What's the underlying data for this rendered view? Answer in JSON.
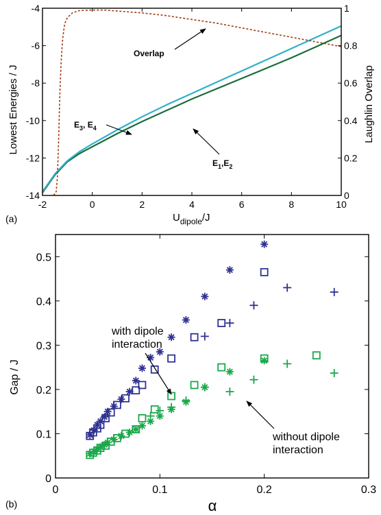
{
  "chart_data": [
    {
      "panel_label": "(a)",
      "type": "line",
      "xlabel": "U_dipole/J",
      "xlabel_main": "U",
      "xlabel_sub": "dipole",
      "xlabel_tail": "/J",
      "ylabel": "Lowest Energies / J",
      "y2label": "Laughlin Overlap",
      "xlim": [
        -2,
        10
      ],
      "ylim": [
        -14,
        -4
      ],
      "y2lim": [
        0,
        1
      ],
      "xticks": [
        "-2",
        "0",
        "2",
        "4",
        "6",
        "8",
        "10"
      ],
      "yticks": [
        "-14",
        "-12",
        "-10",
        "-8",
        "-6",
        "-4"
      ],
      "y2ticks": [
        "0",
        "0.2",
        "0.4",
        "0.6",
        "0.8",
        "1"
      ],
      "grid": false,
      "series": [
        {
          "axis": "left",
          "color": "#1a6b3a",
          "width": 2.2,
          "x": [
            -2,
            -1.5,
            -1,
            -0.5,
            0,
            1,
            2,
            3,
            4,
            5,
            6,
            7,
            8,
            9,
            10
          ],
          "y": [
            -13.85,
            -12.9,
            -12.2,
            -11.75,
            -11.4,
            -10.7,
            -10.05,
            -9.45,
            -8.85,
            -8.3,
            -7.75,
            -7.2,
            -6.65,
            -6.05,
            -5.45
          ]
        },
        {
          "axis": "left",
          "color": "#c2483a",
          "width": 1.2,
          "x": [
            -2,
            -1.5,
            -1,
            -0.5,
            0,
            1,
            2,
            3,
            4,
            5,
            6,
            7,
            8,
            9,
            10
          ],
          "y": [
            -13.8,
            -12.85,
            -12.15,
            -11.65,
            -11.25,
            -10.5,
            -9.8,
            -9.15,
            -8.55,
            -7.95,
            -7.35,
            -6.75,
            -6.15,
            -5.55,
            -4.95
          ]
        },
        {
          "axis": "left",
          "color": "#2fb0c9",
          "width": 2.2,
          "x": [
            -2,
            -1.5,
            -1,
            -0.5,
            0,
            1,
            2,
            3,
            4,
            5,
            6,
            7,
            8,
            9,
            10
          ],
          "y": [
            -13.8,
            -12.85,
            -12.15,
            -11.65,
            -11.25,
            -10.5,
            -9.8,
            -9.15,
            -8.55,
            -7.95,
            -7.35,
            -6.75,
            -6.15,
            -5.55,
            -4.95
          ]
        },
        {
          "axis": "right",
          "dashed": true,
          "color": "#a33a0f",
          "width": 1.6,
          "x": [
            -1.55,
            -1.45,
            -1.4,
            -1.35,
            -1.3,
            -1.25,
            -1.2,
            -1.15,
            -1.1,
            -1.0,
            -0.8,
            -0.5,
            0,
            0.5,
            1,
            2,
            3,
            4,
            5,
            6,
            7,
            8,
            9,
            10
          ],
          "y": [
            0.0,
            0.02,
            0.1,
            0.3,
            0.55,
            0.72,
            0.82,
            0.88,
            0.92,
            0.95,
            0.975,
            0.988,
            0.99,
            0.99,
            0.985,
            0.975,
            0.96,
            0.94,
            0.92,
            0.895,
            0.87,
            0.845,
            0.82,
            0.795
          ]
        }
      ],
      "annotations": [
        {
          "text": "Overlap"
        },
        {
          "text_main": "E",
          "sub1": "3",
          "mid": ", E",
          "sub2": "4"
        },
        {
          "text_main": "E",
          "sub1": "1",
          "mid": ",E",
          "sub2": "2"
        }
      ]
    },
    {
      "panel_label": "(b)",
      "type": "scatter",
      "xlabel": "α",
      "ylabel": "Gap / J",
      "xlim": [
        0,
        0.3
      ],
      "ylim": [
        0,
        0.55
      ],
      "xticks": [
        "0",
        "0.1",
        "0.2",
        "0.3"
      ],
      "yticks": [
        "0",
        "0.1",
        "0.2",
        "0.3",
        "0.4",
        "0.5"
      ],
      "grid": false,
      "series": [
        {
          "marker": "asterisk",
          "color": "#2e3192",
          "x": [
            0.033,
            0.037,
            0.04,
            0.043,
            0.047,
            0.05,
            0.056,
            0.063,
            0.071,
            0.077,
            0.083,
            0.091,
            0.1,
            0.111,
            0.125,
            0.143,
            0.167,
            0.2
          ],
          "y": [
            0.097,
            0.108,
            0.12,
            0.128,
            0.138,
            0.15,
            0.162,
            0.178,
            0.195,
            0.22,
            0.248,
            0.272,
            0.285,
            0.318,
            0.357,
            0.41,
            0.47,
            0.528
          ]
        },
        {
          "marker": "square",
          "color": "#2e3192",
          "x": [
            0.033,
            0.036,
            0.04,
            0.043,
            0.048,
            0.053,
            0.059,
            0.067,
            0.077,
            0.083,
            0.095,
            0.111,
            0.133,
            0.159,
            0.2
          ],
          "y": [
            0.095,
            0.103,
            0.112,
            0.12,
            0.135,
            0.148,
            0.165,
            0.18,
            0.198,
            0.21,
            0.245,
            0.27,
            0.318,
            0.35,
            0.465
          ]
        },
        {
          "marker": "plus",
          "color": "#2e3192",
          "x": [
            0.143,
            0.167,
            0.19,
            0.222,
            0.267
          ],
          "y": [
            0.32,
            0.35,
            0.39,
            0.43,
            0.42
          ]
        },
        {
          "marker": "asterisk",
          "color": "#1aa84a",
          "x": [
            0.033,
            0.037,
            0.04,
            0.043,
            0.047,
            0.05,
            0.056,
            0.063,
            0.071,
            0.077,
            0.083,
            0.091,
            0.1,
            0.111,
            0.125,
            0.143,
            0.167,
            0.2
          ],
          "y": [
            0.055,
            0.06,
            0.065,
            0.07,
            0.075,
            0.08,
            0.087,
            0.095,
            0.103,
            0.11,
            0.118,
            0.128,
            0.14,
            0.155,
            0.172,
            0.205,
            0.24,
            0.265
          ]
        },
        {
          "marker": "square",
          "color": "#1aa84a",
          "x": [
            0.033,
            0.036,
            0.04,
            0.043,
            0.048,
            0.053,
            0.059,
            0.067,
            0.077,
            0.083,
            0.095,
            0.111,
            0.133,
            0.159,
            0.2,
            0.25
          ],
          "y": [
            0.052,
            0.057,
            0.062,
            0.068,
            0.073,
            0.082,
            0.09,
            0.1,
            0.11,
            0.135,
            0.155,
            0.185,
            0.21,
            0.25,
            0.27,
            0.277
          ]
        },
        {
          "marker": "plus",
          "color": "#1aa84a",
          "x": [
            0.091,
            0.1,
            0.111,
            0.125,
            0.143,
            0.167,
            0.19,
            0.222,
            0.267
          ],
          "y": [
            0.14,
            0.152,
            0.16,
            0.175,
            0.205,
            0.195,
            0.222,
            0.258,
            0.237
          ]
        }
      ],
      "annotations": [
        {
          "line1": "with dipole",
          "line2": "interaction"
        },
        {
          "line1": "without dipole",
          "line2": "interaction"
        }
      ]
    }
  ]
}
